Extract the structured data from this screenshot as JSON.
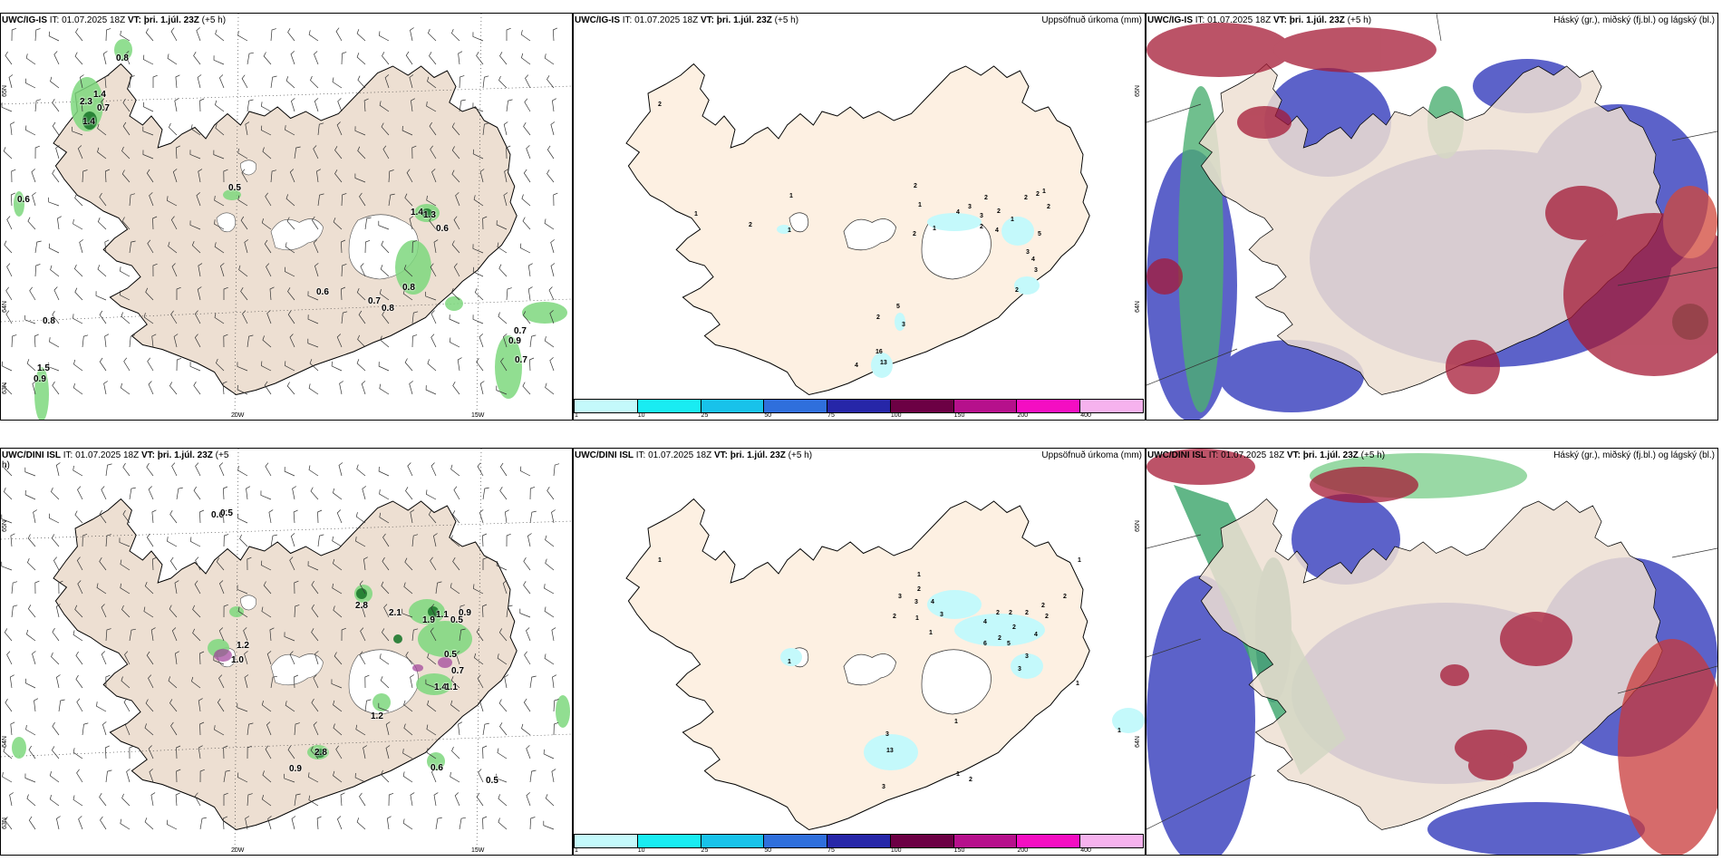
{
  "top_row": {
    "wind": {
      "header_model": "UWC/IG-IS",
      "header_it": "IT: 01.07.2025 18Z",
      "header_vt_label": "VT:",
      "header_vt": "þri. 1.júl. 23Z",
      "header_step": "(+5 h)",
      "precip_labels": [
        "0.8",
        "1.4",
        "2.3",
        "0.7",
        "1.4",
        "0.6",
        "0.5",
        "1.4",
        "1.3",
        "0.6",
        "0.6",
        "0.8",
        "0.7",
        "0.8",
        "0.8",
        "0.7",
        "0.9",
        "0.7",
        "1.5",
        "0.9"
      ],
      "lat_labels": [
        "65N",
        "64N",
        "63N"
      ],
      "lon_labels": [
        "20W",
        "15W"
      ]
    },
    "precip": {
      "header_model": "UWC/IG-IS",
      "header_it": "IT: 01.07.2025 18Z",
      "header_vt_label": "VT:",
      "header_vt": "þri. 1.júl. 23Z",
      "header_step": "(+5 h)",
      "title": "Uppsöfnuð úrkoma (mm)",
      "lat_labels": [
        "65N",
        "64N"
      ],
      "values": [
        "2",
        "1",
        "1",
        "2",
        "1",
        "2",
        "1",
        "1",
        "2",
        "2",
        "2",
        "1",
        "4",
        "3",
        "3",
        "2",
        "2",
        "4",
        "2",
        "1",
        "2",
        "5",
        "3",
        "4",
        "3",
        "2",
        "2",
        "5",
        "3",
        "16",
        "13",
        "4"
      ]
    },
    "clouds": {
      "header_model": "UWC/IG-IS",
      "header_it": "IT: 01.07.2025 18Z",
      "header_vt_label": "VT:",
      "header_vt": "þri. 1.júl. 23Z",
      "header_step": "(+5 h)",
      "title": "Háský (gr.), miðský (fj.bl.) og lágský (bl.)"
    }
  },
  "bottom_row": {
    "wind": {
      "header_model": "UWC/DINI ISL",
      "header_it": "IT: 01.07.2025 18Z",
      "header_vt_label": "VT:",
      "header_vt": "þri. 1.júl. 23Z",
      "header_step": "(+5",
      "header_step_wrap": "h)",
      "precip_labels": [
        "0.6",
        "0.5",
        "2.8",
        "2.1",
        "1.1",
        "0.9",
        "1.9",
        "0.5",
        "1.2",
        "1.0",
        "0.5",
        "0.7",
        "1.4",
        "1.1",
        "1.2",
        "2.8",
        "0.9",
        "0.6",
        "0.5"
      ],
      "lat_labels": [
        "65N",
        "64N",
        "63N"
      ],
      "lon_labels": [
        "20W",
        "15W"
      ]
    },
    "precip": {
      "header_model": "UWC/DINI ISL",
      "header_it": "IT: 01.07.2025 18Z",
      "header_vt_label": "VT:",
      "header_vt": "þri. 1.júl. 23Z",
      "header_step": "(+5 h)",
      "title": "Uppsöfnuð úrkoma (mm)",
      "lat_labels": [
        "65N",
        "64N"
      ],
      "values": [
        "1",
        "1",
        "2",
        "3",
        "3",
        "4",
        "2",
        "1",
        "3",
        "4",
        "1",
        "2",
        "2",
        "2",
        "2",
        "2",
        "4",
        "2",
        "6",
        "5",
        "3",
        "3",
        "2",
        "2",
        "1",
        "3",
        "13",
        "1",
        "1",
        "2",
        "3",
        "1",
        "1",
        "1"
      ]
    },
    "clouds": {
      "header_model": "UWC/DINI ISL",
      "header_it": "IT: 01.07.2025 18Z",
      "header_vt_label": "VT:",
      "header_vt": "þri. 1.júl. 23Z",
      "header_step": "(+5 h)",
      "title": "Háský (gr.), miðský (fj.bl.) og lágský (bl.)"
    }
  },
  "colorbar": {
    "ticks": [
      "1",
      "10",
      "25",
      "50",
      "75",
      "100",
      "150",
      "200",
      "400"
    ],
    "colors": [
      "#c4f9fb",
      "#19ecf2",
      "#18c2ea",
      "#2f6fdc",
      "#2626a8",
      "#6c0044",
      "#b6108c",
      "#f40ec2",
      "#f6b2ee"
    ]
  },
  "colors": {
    "land": "#eddfd2",
    "land_light": "#fdf0e2",
    "precip_green": "#7ed87e",
    "cloud_high": "#4caf72",
    "cloud_mid": "#4047c0",
    "cloud_low": "#a51a35"
  }
}
